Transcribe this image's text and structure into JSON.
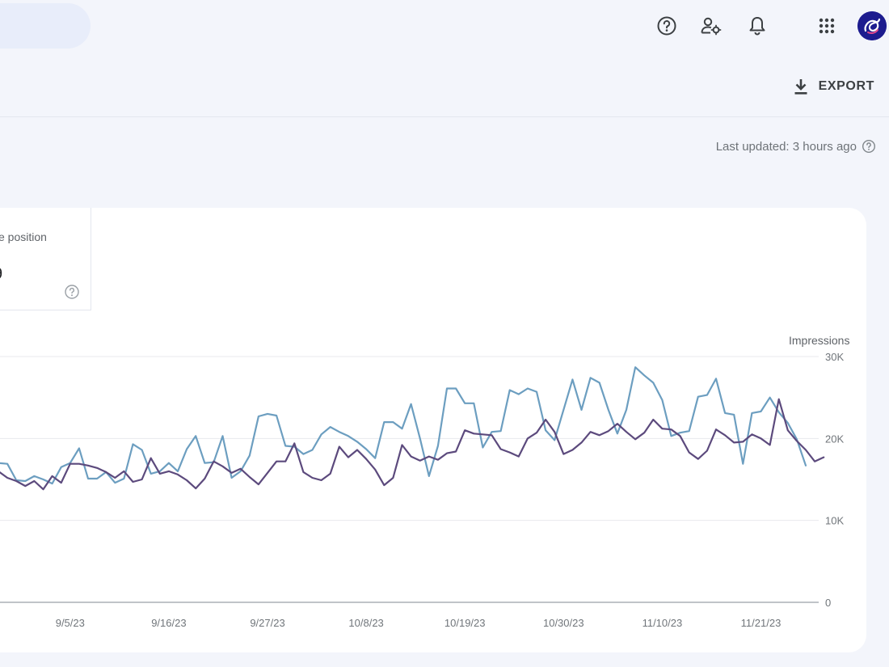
{
  "header": {
    "icons": [
      "help-icon",
      "manage-users-icon",
      "bell-icon",
      "apps-grid-icon"
    ]
  },
  "toolbar": {
    "export_label": "EXPORT"
  },
  "status": {
    "last_updated": "Last updated: 3 hours ago"
  },
  "metric_card": {
    "label": "e position",
    "value": "9"
  },
  "colors": {
    "series_impressions": "#6c9ec0",
    "series_position": "#5c4a7d",
    "accent": "#1d1c8f"
  },
  "chart_data": {
    "type": "line",
    "xlabel": "",
    "ylabel_right": "Impressions",
    "y_ticks": [
      0,
      10000,
      20000,
      30000
    ],
    "y_tick_labels": [
      "0",
      "10K",
      "20K",
      "30K"
    ],
    "ylim": [
      0,
      30000
    ],
    "x_tick_labels": [
      "9/5/23",
      "9/16/23",
      "9/27/23",
      "10/8/23",
      "10/19/23",
      "10/30/23",
      "11/10/23",
      "11/21/23"
    ],
    "grid": true,
    "series": [
      {
        "values": [
          17000,
          16900,
          14900,
          14800,
          15400,
          15000,
          14500,
          16500,
          17000,
          18800,
          15100,
          15100,
          15900,
          14600,
          15100,
          19300,
          18600,
          15700,
          16000,
          17000,
          16000,
          18700,
          20300,
          17000,
          17100,
          20300,
          15200,
          16000,
          17900,
          22700,
          23000,
          22800,
          19100,
          19000,
          18100,
          18600,
          20500,
          21400,
          20800,
          20300,
          19600,
          18700,
          17600,
          22000,
          22000,
          21200,
          24200,
          20000,
          15400,
          19100,
          26100,
          26100,
          24300,
          24300,
          18900,
          20800,
          20900,
          25900,
          25400,
          26100,
          25700,
          21000,
          19800,
          23500,
          27200,
          23500,
          27400,
          26800,
          23500,
          20600,
          23500,
          28700,
          27700,
          26800,
          24700,
          20300,
          20700,
          20900,
          25100,
          25300,
          27300,
          23100,
          22900,
          16900,
          23100,
          23300,
          25000,
          23200,
          21900,
          19900,
          16700
        ],
        "color": "#6c9ec0"
      },
      {
        "values": [
          16000,
          15200,
          14800,
          14200,
          14800,
          13800,
          15400,
          14600,
          16900,
          16900,
          16700,
          16400,
          15900,
          15200,
          16000,
          14700,
          15000,
          17600,
          15700,
          16000,
          15600,
          14900,
          13900,
          15100,
          17200,
          16600,
          15800,
          16300,
          15300,
          14400,
          15800,
          17200,
          17200,
          19400,
          15900,
          15200,
          14900,
          15700,
          19000,
          17700,
          18600,
          17500,
          16200,
          14300,
          15200,
          19200,
          17800,
          17300,
          17800,
          17400,
          18200,
          18400,
          21000,
          20600,
          20500,
          20400,
          18700,
          18300,
          17800,
          20000,
          20700,
          22300,
          20800,
          18100,
          18600,
          19500,
          20800,
          20400,
          20900,
          21800,
          20800,
          19900,
          20700,
          22300,
          21200,
          21100,
          20300,
          18300,
          17500,
          18500,
          21100,
          20400,
          19500,
          19600,
          20500,
          20000,
          19200,
          24800,
          21000,
          19700,
          18600,
          17200,
          17700
        ],
        "color": "#5c4a7d"
      }
    ]
  }
}
